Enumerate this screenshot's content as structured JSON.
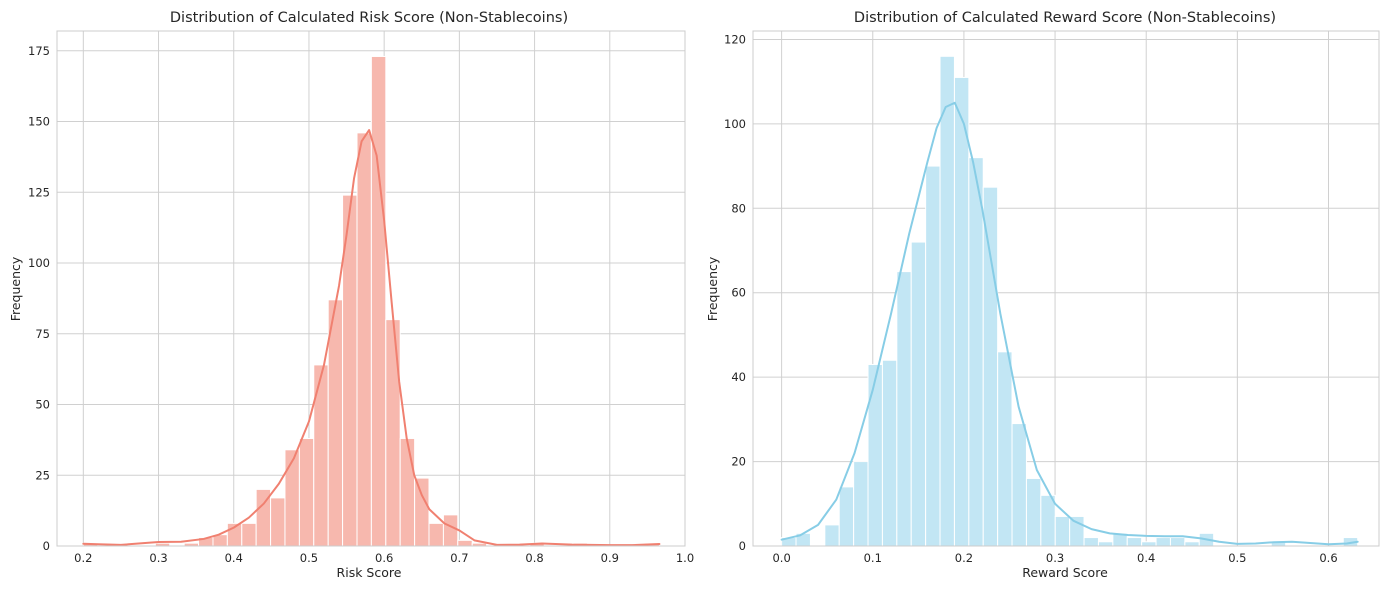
{
  "chart_data": [
    {
      "type": "histogram",
      "title": "Distribution of Calculated Risk Score (Non-Stablecoins)",
      "xlabel": "Risk Score",
      "ylabel": "Frequency",
      "xlim": [
        0.165,
        1.0
      ],
      "ylim": [
        0,
        182
      ],
      "xticks": [
        0.2,
        0.3,
        0.4,
        0.5,
        0.6,
        0.7,
        0.8,
        0.9,
        1.0
      ],
      "xtick_labels": [
        "0.2",
        "0.3",
        "0.4",
        "0.5",
        "0.6",
        "0.7",
        "0.8",
        "0.9",
        "1.0"
      ],
      "yticks": [
        0,
        25,
        50,
        75,
        100,
        125,
        150,
        175
      ],
      "ytick_labels": [
        "0",
        "25",
        "50",
        "75",
        "100",
        "125",
        "150",
        "175"
      ],
      "grid": true,
      "bar_color": "#f7b8ae",
      "kde_color": "#f08070",
      "bins": [
        {
          "x0": 0.2,
          "x1": 0.2192,
          "count": 1
        },
        {
          "x0": 0.2192,
          "x1": 0.2383,
          "count": 0
        },
        {
          "x0": 0.2383,
          "x1": 0.2575,
          "count": 0
        },
        {
          "x0": 0.2575,
          "x1": 0.2766,
          "count": 0
        },
        {
          "x0": 0.2766,
          "x1": 0.2958,
          "count": 0
        },
        {
          "x0": 0.2958,
          "x1": 0.3149,
          "count": 1
        },
        {
          "x0": 0.3149,
          "x1": 0.3341,
          "count": 0
        },
        {
          "x0": 0.3341,
          "x1": 0.3532,
          "count": 1
        },
        {
          "x0": 0.3532,
          "x1": 0.3724,
          "count": 3
        },
        {
          "x0": 0.3724,
          "x1": 0.3915,
          "count": 4
        },
        {
          "x0": 0.3915,
          "x1": 0.4107,
          "count": 8
        },
        {
          "x0": 0.4107,
          "x1": 0.4298,
          "count": 8
        },
        {
          "x0": 0.4298,
          "x1": 0.449,
          "count": 20
        },
        {
          "x0": 0.449,
          "x1": 0.4681,
          "count": 17
        },
        {
          "x0": 0.4681,
          "x1": 0.4873,
          "count": 34
        },
        {
          "x0": 0.4873,
          "x1": 0.5064,
          "count": 38
        },
        {
          "x0": 0.5064,
          "x1": 0.5256,
          "count": 64
        },
        {
          "x0": 0.5256,
          "x1": 0.5447,
          "count": 87
        },
        {
          "x0": 0.5447,
          "x1": 0.5639,
          "count": 124
        },
        {
          "x0": 0.5639,
          "x1": 0.583,
          "count": 146
        },
        {
          "x0": 0.583,
          "x1": 0.6022,
          "count": 173
        },
        {
          "x0": 0.6022,
          "x1": 0.6213,
          "count": 80
        },
        {
          "x0": 0.6213,
          "x1": 0.6405,
          "count": 38
        },
        {
          "x0": 0.6405,
          "x1": 0.6596,
          "count": 24
        },
        {
          "x0": 0.6596,
          "x1": 0.6788,
          "count": 8
        },
        {
          "x0": 0.6788,
          "x1": 0.6979,
          "count": 11
        },
        {
          "x0": 0.6979,
          "x1": 0.7171,
          "count": 2
        },
        {
          "x0": 0.7171,
          "x1": 0.7362,
          "count": 1
        },
        {
          "x0": 0.7362,
          "x1": 0.7554,
          "count": 0
        },
        {
          "x0": 0.7554,
          "x1": 0.7745,
          "count": 0
        },
        {
          "x0": 0.7745,
          "x1": 0.7937,
          "count": 0
        },
        {
          "x0": 0.7937,
          "x1": 0.8128,
          "count": 1
        },
        {
          "x0": 0.8128,
          "x1": 0.832,
          "count": 0
        },
        {
          "x0": 0.832,
          "x1": 0.8511,
          "count": 0
        },
        {
          "x0": 0.8511,
          "x1": 0.8703,
          "count": 1
        },
        {
          "x0": 0.8703,
          "x1": 0.8894,
          "count": 0
        },
        {
          "x0": 0.8894,
          "x1": 0.9086,
          "count": 0
        },
        {
          "x0": 0.9086,
          "x1": 0.9277,
          "count": 0
        },
        {
          "x0": 0.9277,
          "x1": 0.9469,
          "count": 0
        },
        {
          "x0": 0.9469,
          "x1": 0.966,
          "count": 1
        }
      ],
      "kde": {
        "x": [
          0.2,
          0.22,
          0.25,
          0.28,
          0.3,
          0.33,
          0.36,
          0.38,
          0.4,
          0.42,
          0.44,
          0.46,
          0.48,
          0.5,
          0.52,
          0.54,
          0.55,
          0.56,
          0.57,
          0.58,
          0.59,
          0.6,
          0.61,
          0.62,
          0.63,
          0.64,
          0.65,
          0.66,
          0.68,
          0.7,
          0.72,
          0.75,
          0.78,
          0.81,
          0.85,
          0.9,
          0.93,
          0.966
        ],
        "y": [
          0.8,
          0.6,
          0.4,
          1.0,
          1.4,
          1.5,
          2.5,
          4.0,
          6.5,
          10.0,
          15.0,
          22.0,
          31.0,
          44.0,
          64.0,
          92.0,
          110.0,
          130.0,
          143.0,
          147.0,
          138.0,
          115.0,
          86.0,
          58.0,
          38.0,
          25.0,
          18.0,
          13.0,
          8.0,
          5.5,
          2.0,
          0.4,
          0.5,
          0.9,
          0.5,
          0.3,
          0.3,
          0.7
        ]
      }
    },
    {
      "type": "histogram",
      "title": "Distribution of Calculated Reward Score (Non-Stablecoins)",
      "xlabel": "Reward Score",
      "ylabel": "Frequency",
      "xlim": [
        -0.0314,
        0.6554
      ],
      "ylim": [
        0,
        122
      ],
      "xticks": [
        0.0,
        0.1,
        0.2,
        0.3,
        0.4,
        0.5,
        0.6
      ],
      "xtick_labels": [
        "0.0",
        "0.1",
        "0.2",
        "0.3",
        "0.4",
        "0.5",
        "0.6"
      ],
      "yticks": [
        0,
        20,
        40,
        60,
        80,
        100,
        120
      ],
      "ytick_labels": [
        "0",
        "20",
        "40",
        "60",
        "80",
        "100",
        "120"
      ],
      "grid": true,
      "bar_color": "#c2e6f4",
      "kde_color": "#87cde6",
      "bins": [
        {
          "x0": 0.0,
          "x1": 0.0158,
          "count": 2
        },
        {
          "x0": 0.0158,
          "x1": 0.0316,
          "count": 3
        },
        {
          "x0": 0.0316,
          "x1": 0.0474,
          "count": 0
        },
        {
          "x0": 0.0474,
          "x1": 0.0632,
          "count": 5
        },
        {
          "x0": 0.0632,
          "x1": 0.079,
          "count": 14
        },
        {
          "x0": 0.079,
          "x1": 0.0948,
          "count": 20
        },
        {
          "x0": 0.0948,
          "x1": 0.1106,
          "count": 43
        },
        {
          "x0": 0.1106,
          "x1": 0.1264,
          "count": 44
        },
        {
          "x0": 0.1264,
          "x1": 0.1422,
          "count": 65
        },
        {
          "x0": 0.1422,
          "x1": 0.158,
          "count": 72
        },
        {
          "x0": 0.158,
          "x1": 0.1738,
          "count": 90
        },
        {
          "x0": 0.1738,
          "x1": 0.1896,
          "count": 116
        },
        {
          "x0": 0.1896,
          "x1": 0.2054,
          "count": 111
        },
        {
          "x0": 0.2054,
          "x1": 0.2212,
          "count": 92
        },
        {
          "x0": 0.2212,
          "x1": 0.237,
          "count": 85
        },
        {
          "x0": 0.237,
          "x1": 0.2528,
          "count": 46
        },
        {
          "x0": 0.2528,
          "x1": 0.2686,
          "count": 29
        },
        {
          "x0": 0.2686,
          "x1": 0.2844,
          "count": 16
        },
        {
          "x0": 0.2844,
          "x1": 0.3002,
          "count": 12
        },
        {
          "x0": 0.3002,
          "x1": 0.316,
          "count": 7
        },
        {
          "x0": 0.316,
          "x1": 0.3318,
          "count": 7
        },
        {
          "x0": 0.3318,
          "x1": 0.3476,
          "count": 2
        },
        {
          "x0": 0.3476,
          "x1": 0.3634,
          "count": 1
        },
        {
          "x0": 0.3634,
          "x1": 0.3792,
          "count": 3
        },
        {
          "x0": 0.3792,
          "x1": 0.395,
          "count": 2
        },
        {
          "x0": 0.395,
          "x1": 0.4108,
          "count": 1
        },
        {
          "x0": 0.4108,
          "x1": 0.4266,
          "count": 2
        },
        {
          "x0": 0.4266,
          "x1": 0.4424,
          "count": 2
        },
        {
          "x0": 0.4424,
          "x1": 0.4582,
          "count": 1
        },
        {
          "x0": 0.4582,
          "x1": 0.474,
          "count": 3
        },
        {
          "x0": 0.474,
          "x1": 0.4898,
          "count": 0
        },
        {
          "x0": 0.4898,
          "x1": 0.5056,
          "count": 0
        },
        {
          "x0": 0.5056,
          "x1": 0.5214,
          "count": 0
        },
        {
          "x0": 0.5214,
          "x1": 0.5372,
          "count": 0
        },
        {
          "x0": 0.5372,
          "x1": 0.553,
          "count": 1
        },
        {
          "x0": 0.553,
          "x1": 0.5688,
          "count": 0
        },
        {
          "x0": 0.5688,
          "x1": 0.5846,
          "count": 0
        },
        {
          "x0": 0.5846,
          "x1": 0.6004,
          "count": 0
        },
        {
          "x0": 0.6004,
          "x1": 0.6162,
          "count": 0
        },
        {
          "x0": 0.6162,
          "x1": 0.632,
          "count": 2
        }
      ],
      "kde": {
        "x": [
          0.0,
          0.02,
          0.04,
          0.06,
          0.08,
          0.1,
          0.12,
          0.14,
          0.16,
          0.17,
          0.18,
          0.19,
          0.2,
          0.21,
          0.22,
          0.24,
          0.26,
          0.28,
          0.3,
          0.32,
          0.34,
          0.36,
          0.38,
          0.4,
          0.42,
          0.44,
          0.46,
          0.48,
          0.5,
          0.52,
          0.54,
          0.56,
          0.58,
          0.6,
          0.62,
          0.632
        ],
        "y": [
          1.5,
          2.5,
          5.0,
          11.0,
          22.0,
          37.0,
          55.0,
          74.0,
          91.0,
          99.0,
          104.0,
          105.0,
          100.0,
          91.0,
          80.0,
          55.0,
          33.0,
          18.0,
          10.0,
          6.0,
          4.0,
          3.0,
          2.6,
          2.4,
          2.3,
          2.3,
          1.8,
          1.0,
          0.5,
          0.6,
          0.9,
          1.0,
          0.7,
          0.4,
          0.6,
          1.0
        ]
      }
    }
  ]
}
